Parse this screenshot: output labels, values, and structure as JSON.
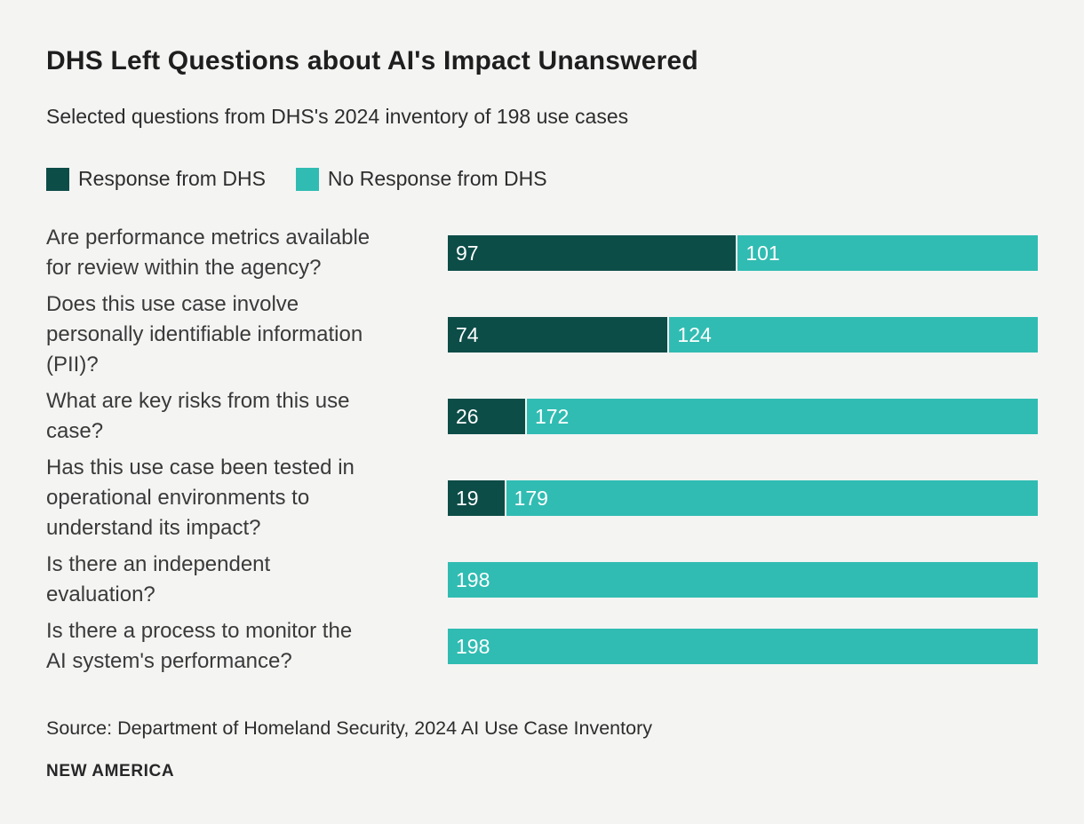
{
  "header": {
    "title": "DHS Left Questions about AI's Impact Unanswered",
    "subtitle": "Selected questions from DHS's 2024 inventory of 198 use cases"
  },
  "colors": {
    "response": "#0d4d48",
    "no_response": "#30bcb2",
    "background": "#f4f4f3",
    "value_label": "#ffffff"
  },
  "legend": {
    "items": [
      {
        "label": "Response from DHS",
        "color": "#0d4d48"
      },
      {
        "label": "No Response from DHS",
        "color": "#30bcb2"
      }
    ]
  },
  "chart_data": {
    "type": "bar",
    "orientation": "horizontal",
    "stacked": true,
    "title": "DHS Left Questions about AI's Impact Unanswered",
    "subtitle": "Selected questions from DHS's 2024 inventory of 198 use cases",
    "xlabel": "",
    "ylabel": "",
    "xlim": [
      0,
      198
    ],
    "total_per_bar": 198,
    "grid": false,
    "legend_position": "top",
    "value_labels": "inside-start",
    "categories": [
      "Are performance metrics available for review within the agency?",
      "Does this use case involve personally identifiable information (PII)?",
      "What are key risks from this use case?",
      "Has this use case been tested in operational environments to understand its impact?",
      "Is there an independent evaluation?",
      "Is there a process to monitor the AI system's performance?"
    ],
    "series": [
      {
        "name": "Response from DHS",
        "color": "#0d4d48",
        "values": [
          97,
          74,
          26,
          19,
          0,
          0
        ]
      },
      {
        "name": "No Response from DHS",
        "color": "#30bcb2",
        "values": [
          101,
          124,
          172,
          179,
          198,
          198
        ]
      }
    ]
  },
  "footer": {
    "source": "Source: Department of Homeland Security, 2024 AI Use Case Inventory",
    "brand": "NEW AMERICA"
  }
}
